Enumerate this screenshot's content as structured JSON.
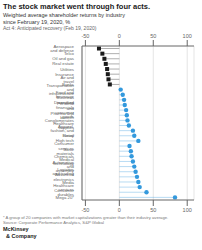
{
  "chart_data": {
    "type": "lollipop",
    "orientation": "horizontal",
    "title": "The stock market went through four acts.",
    "subtitle": "Weighted average shareholder returns by industry\nsince February 19, 2020, %",
    "annotations": [
      "Act 4: Anticipated recovery (Feb 19, 2020)",
      "* A group of 20 companies with market capitalizations greater than their industry average.\nSource: Corporate Performance Analytics, S&P Global",
      "McKinsey\n  & Company"
    ],
    "categories": [
      "Aerospace and defense",
      "Telco",
      "Oil and gas",
      "Real estate",
      "Utilities",
      "Insurance",
      "Air and travel",
      "Banks",
      "Transportation and infrastructure",
      "Food and beverage",
      "Business services",
      "Diversified financials",
      "Personal and consumer goods",
      "Pharma and biotech",
      "Conglomerates",
      "Healthcare supplies",
      "Apparel, fashion, and luxury",
      "Retail",
      "High tech",
      "Consumer services",
      "Basic materials",
      "Chemicals",
      "Medical technology",
      "Automotive and assembly",
      "Logistics and trading",
      "Advanced electronics",
      "Media",
      "Healthcare services",
      "Consumer durables",
      "Mega 20*"
    ],
    "series": [
      {
        "color": "#1a1a1a",
        "marker": "square",
        "values": [
          -30,
          -25,
          -22,
          -20,
          -18,
          -17,
          -16,
          -14,
          null,
          null,
          null,
          null,
          null,
          null,
          null,
          null,
          null,
          null,
          null,
          null,
          null,
          null,
          null,
          null,
          null,
          null,
          null,
          null,
          null,
          null
        ]
      },
      {
        "color": "#3399DD",
        "marker": "circle",
        "values": [
          null,
          null,
          null,
          null,
          null,
          null,
          null,
          null,
          2,
          5,
          7,
          8,
          10,
          11,
          12,
          14,
          20,
          22,
          28,
          15,
          17,
          18,
          20,
          22,
          24,
          26,
          28,
          30,
          40,
          82
        ]
      }
    ],
    "xlim": [
      -55,
      110
    ],
    "xticks": [
      -50,
      0,
      50,
      100
    ],
    "grid": true
  }
}
